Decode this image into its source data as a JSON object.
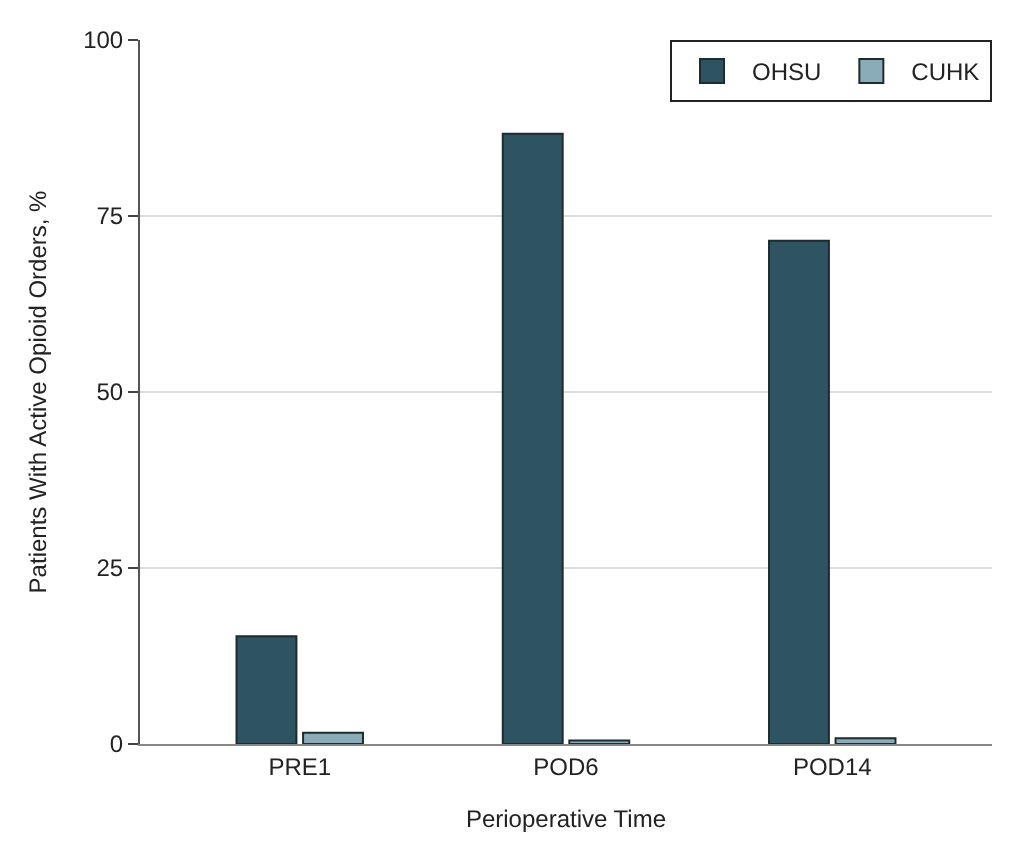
{
  "chart_data": {
    "type": "bar",
    "xlabel": "Perioperative Time",
    "ylabel": "Patients With Active Opioid Orders, %",
    "categories": [
      "PRE1",
      "POD6",
      "POD14"
    ],
    "series": [
      {
        "name": "OHSU",
        "color": "#2e5361",
        "values": [
          15.3,
          86.7,
          71.5
        ]
      },
      {
        "name": "CUHK",
        "color": "#8aabb8",
        "values": [
          1.6,
          0.5,
          0.8
        ]
      }
    ],
    "ylim": [
      0,
      100
    ],
    "yticks": [
      0,
      25,
      50,
      75,
      100
    ],
    "grid": "y",
    "legend": "top right"
  }
}
